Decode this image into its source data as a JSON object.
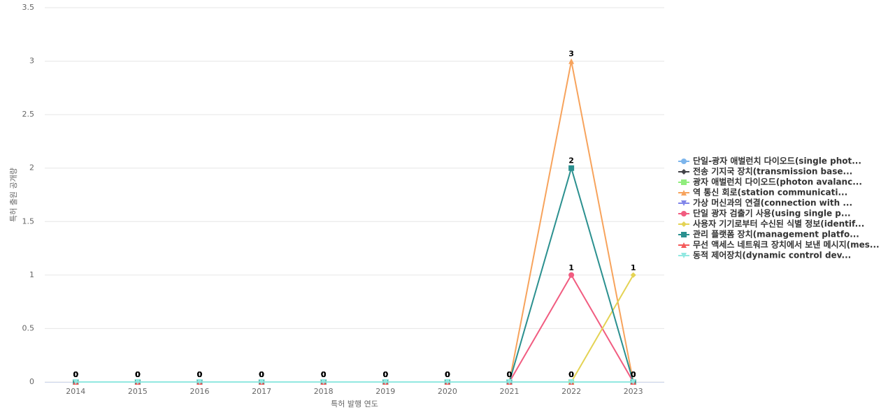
{
  "chart_data": {
    "type": "line",
    "x_label": "특허 발행 연도",
    "y_label": "특허 출원 공개량",
    "categories": [
      "2014",
      "2015",
      "2016",
      "2017",
      "2018",
      "2019",
      "2020",
      "2021",
      "2022",
      "2023"
    ],
    "ylim": [
      0,
      3.5
    ],
    "yticks": [
      0,
      0.5,
      1,
      1.5,
      2,
      2.5,
      3,
      3.5
    ],
    "grid": true,
    "legend": "right",
    "series": [
      {
        "name": "단일-광자 애벌런치 다이오드(single phot...",
        "color": "#7cb5ec",
        "marker": "circle",
        "values": [
          0,
          0,
          0,
          0,
          0,
          0,
          0,
          0,
          0,
          0
        ]
      },
      {
        "name": "전송 기지국 장치(transmission base...",
        "color": "#434348",
        "marker": "diamond",
        "values": [
          0,
          0,
          0,
          0,
          0,
          0,
          0,
          0,
          0,
          0
        ]
      },
      {
        "name": "광자 애벌런치 다이오드(photon avalanc...",
        "color": "#90ed7d",
        "marker": "square",
        "values": [
          0,
          0,
          0,
          0,
          0,
          0,
          0,
          0,
          0,
          0
        ]
      },
      {
        "name": "역 통신 회로(station communicati...",
        "color": "#f7a35c",
        "marker": "triangle",
        "values": [
          0,
          0,
          0,
          0,
          0,
          0,
          0,
          0,
          3,
          0
        ]
      },
      {
        "name": "가상 머신과의 연결(connection with ...",
        "color": "#8085e9",
        "marker": "triangle-down",
        "values": [
          0,
          0,
          0,
          0,
          0,
          0,
          0,
          0,
          0,
          0
        ]
      },
      {
        "name": "단일 광자 검출기 사용(using single p...",
        "color": "#f15c80",
        "marker": "circle",
        "values": [
          0,
          0,
          0,
          0,
          0,
          0,
          0,
          0,
          1,
          0
        ]
      },
      {
        "name": "사용자 기기로부터 수신된 식별 정보(identif...",
        "color": "#e4d354",
        "marker": "diamond",
        "values": [
          0,
          0,
          0,
          0,
          0,
          0,
          0,
          0,
          0,
          1
        ]
      },
      {
        "name": "관리 플랫폼 장치(management platfo...",
        "color": "#2b908f",
        "marker": "square",
        "values": [
          0,
          0,
          0,
          0,
          0,
          0,
          0,
          0,
          2,
          0
        ]
      },
      {
        "name": "무선 액세스 네트워크 장치에서 보낸 메시지(mes...",
        "color": "#f45b5b",
        "marker": "triangle",
        "values": [
          0,
          0,
          0,
          0,
          0,
          0,
          0,
          0,
          0,
          0
        ]
      },
      {
        "name": "동적 제어장치(dynamic control dev...",
        "color": "#91e8e1",
        "marker": "triangle-down",
        "values": [
          0,
          0,
          0,
          0,
          0,
          0,
          0,
          0,
          0,
          0
        ]
      }
    ]
  }
}
